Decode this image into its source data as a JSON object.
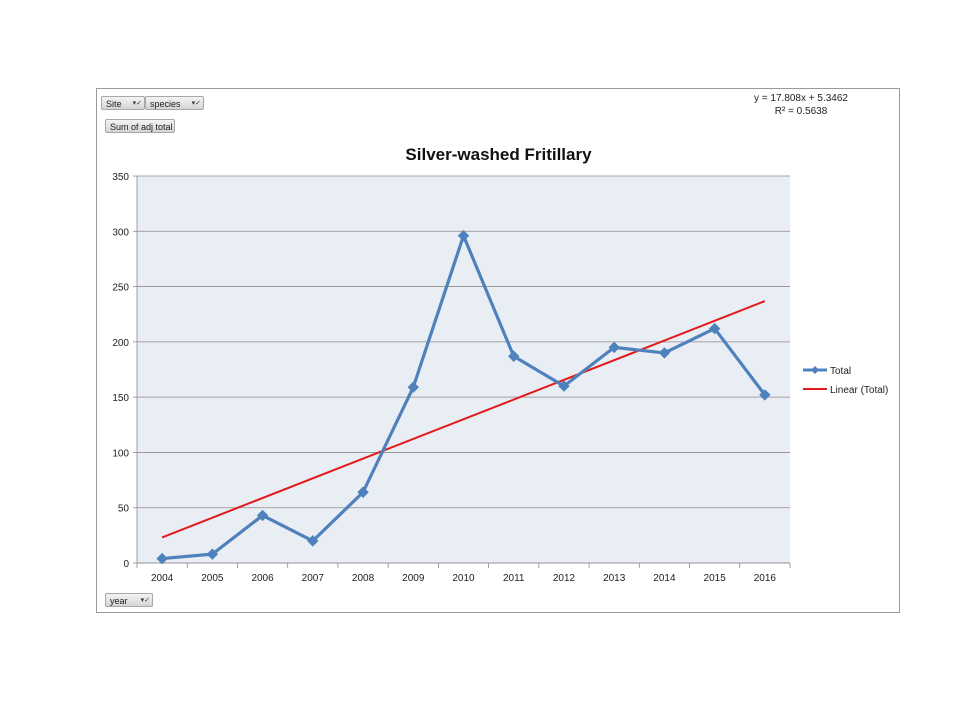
{
  "pivot": {
    "site_label": "Site",
    "species_label": "species",
    "value_label": "Sum of adj total",
    "year_label": "year"
  },
  "trendline": {
    "equation": "y = 17.808x + 5.3462",
    "r_squared": "R² = 0.5638",
    "color": "#e31a1c"
  },
  "chart_data": {
    "type": "line",
    "title": "Silver-washed Fritillary",
    "xlabel": "",
    "ylabel": "",
    "categories": [
      "2004",
      "2005",
      "2006",
      "2007",
      "2008",
      "2009",
      "2010",
      "2011",
      "2012",
      "2013",
      "2014",
      "2015",
      "2016"
    ],
    "series": [
      {
        "name": "Total",
        "color": "#4f81bd",
        "marker": "diamond",
        "values": [
          4,
          8,
          43,
          20,
          64,
          159,
          296,
          187,
          160,
          195,
          190,
          212,
          152
        ]
      },
      {
        "name": "Linear (Total)",
        "color": "#e31a1c",
        "kind": "trendline",
        "slope": 17.808,
        "intercept": 5.3462
      }
    ],
    "ylim": [
      0,
      350
    ],
    "yticks": [
      0,
      50,
      100,
      150,
      200,
      250,
      300,
      350
    ],
    "grid": true,
    "legend": "right",
    "plot_background": "#e9edf4"
  }
}
